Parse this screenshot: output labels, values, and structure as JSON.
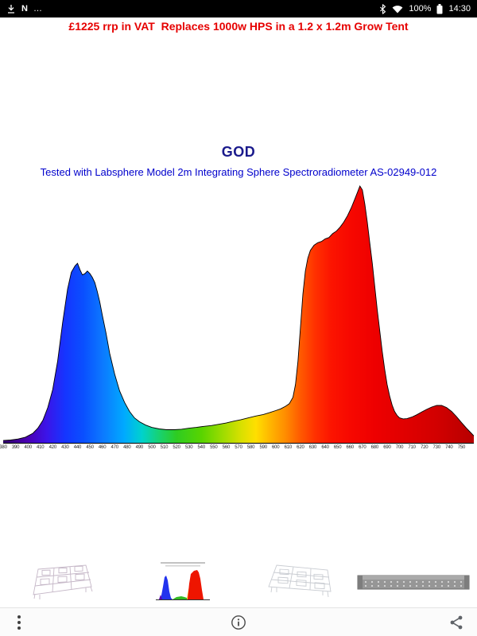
{
  "status_bar": {
    "time": "14:30",
    "battery": "100%",
    "nfc_glyph": "N",
    "more_glyph": "…",
    "left_icons": [
      "download-icon",
      "nfc-icon",
      "status-more-icon"
    ],
    "right_icons": [
      "bluetooth-icon",
      "wifi-icon",
      "battery-icon"
    ]
  },
  "header": {
    "promo_text": "£1225 rrp in VAT  Replaces 1000w HPS in a 1.2 x 1.2m Grow Tent",
    "color": "#e60000"
  },
  "chart": {
    "title_color": "#1a1a8c",
    "subtitle_color": "#0000cc"
  },
  "chart_data": {
    "type": "area",
    "title": "GOD",
    "subtitle": "Tested with Labsphere Model 2m Integrating Sphere Spectroradiometer AS-02949-012",
    "x_range": [
      380,
      760
    ],
    "y_range": [
      0,
      1
    ],
    "grid": false,
    "legend": false,
    "xticks": [
      380,
      390,
      400,
      410,
      420,
      430,
      440,
      450,
      460,
      470,
      480,
      490,
      500,
      510,
      520,
      530,
      540,
      550,
      560,
      570,
      580,
      590,
      600,
      610,
      620,
      630,
      640,
      650,
      660,
      670,
      680,
      690,
      700,
      710,
      720,
      730,
      740,
      750
    ],
    "points": [
      [
        380,
        0.012
      ],
      [
        386,
        0.014
      ],
      [
        392,
        0.018
      ],
      [
        398,
        0.025
      ],
      [
        404,
        0.04
      ],
      [
        408,
        0.06
      ],
      [
        412,
        0.09
      ],
      [
        416,
        0.14
      ],
      [
        420,
        0.21
      ],
      [
        424,
        0.32
      ],
      [
        428,
        0.47
      ],
      [
        432,
        0.6
      ],
      [
        435,
        0.665
      ],
      [
        438,
        0.69
      ],
      [
        440,
        0.7
      ],
      [
        442,
        0.675
      ],
      [
        444,
        0.655
      ],
      [
        446,
        0.66
      ],
      [
        448,
        0.67
      ],
      [
        450,
        0.66
      ],
      [
        452,
        0.645
      ],
      [
        454,
        0.625
      ],
      [
        456,
        0.59
      ],
      [
        458,
        0.55
      ],
      [
        460,
        0.5
      ],
      [
        463,
        0.43
      ],
      [
        466,
        0.35
      ],
      [
        470,
        0.27
      ],
      [
        474,
        0.205
      ],
      [
        478,
        0.16
      ],
      [
        482,
        0.125
      ],
      [
        486,
        0.1
      ],
      [
        490,
        0.085
      ],
      [
        495,
        0.072
      ],
      [
        500,
        0.063
      ],
      [
        506,
        0.057
      ],
      [
        512,
        0.054
      ],
      [
        518,
        0.054
      ],
      [
        524,
        0.056
      ],
      [
        530,
        0.06
      ],
      [
        536,
        0.063
      ],
      [
        542,
        0.067
      ],
      [
        548,
        0.07
      ],
      [
        554,
        0.075
      ],
      [
        560,
        0.08
      ],
      [
        566,
        0.087
      ],
      [
        572,
        0.093
      ],
      [
        578,
        0.1
      ],
      [
        584,
        0.107
      ],
      [
        590,
        0.113
      ],
      [
        595,
        0.12
      ],
      [
        600,
        0.128
      ],
      [
        604,
        0.135
      ],
      [
        608,
        0.145
      ],
      [
        611,
        0.155
      ],
      [
        614,
        0.18
      ],
      [
        616,
        0.23
      ],
      [
        618,
        0.32
      ],
      [
        620,
        0.45
      ],
      [
        622,
        0.58
      ],
      [
        624,
        0.67
      ],
      [
        626,
        0.72
      ],
      [
        628,
        0.75
      ],
      [
        631,
        0.77
      ],
      [
        634,
        0.78
      ],
      [
        637,
        0.785
      ],
      [
        640,
        0.795
      ],
      [
        643,
        0.8
      ],
      [
        646,
        0.815
      ],
      [
        649,
        0.825
      ],
      [
        652,
        0.84
      ],
      [
        655,
        0.86
      ],
      [
        658,
        0.885
      ],
      [
        661,
        0.915
      ],
      [
        664,
        0.95
      ],
      [
        666,
        0.975
      ],
      [
        668,
        1.0
      ],
      [
        670,
        0.985
      ],
      [
        672,
        0.93
      ],
      [
        674,
        0.86
      ],
      [
        676,
        0.78
      ],
      [
        678,
        0.7
      ],
      [
        680,
        0.61
      ],
      [
        682,
        0.52
      ],
      [
        684,
        0.44
      ],
      [
        686,
        0.36
      ],
      [
        688,
        0.29
      ],
      [
        690,
        0.23
      ],
      [
        692,
        0.185
      ],
      [
        694,
        0.15
      ],
      [
        696,
        0.125
      ],
      [
        698,
        0.11
      ],
      [
        700,
        0.1
      ],
      [
        703,
        0.096
      ],
      [
        706,
        0.097
      ],
      [
        710,
        0.103
      ],
      [
        714,
        0.112
      ],
      [
        718,
        0.123
      ],
      [
        722,
        0.133
      ],
      [
        726,
        0.142
      ],
      [
        730,
        0.148
      ],
      [
        734,
        0.148
      ],
      [
        738,
        0.14
      ],
      [
        742,
        0.125
      ],
      [
        746,
        0.105
      ],
      [
        750,
        0.082
      ],
      [
        754,
        0.06
      ],
      [
        758,
        0.04
      ],
      [
        760,
        0.03
      ]
    ],
    "spectrum_gradient": [
      {
        "wl": 380,
        "color": "#33006e"
      },
      {
        "wl": 400,
        "color": "#4a00b4"
      },
      {
        "wl": 415,
        "color": "#3c14e8"
      },
      {
        "wl": 430,
        "color": "#1535ff"
      },
      {
        "wl": 445,
        "color": "#0a50ff"
      },
      {
        "wl": 460,
        "color": "#0c78ff"
      },
      {
        "wl": 478,
        "color": "#00aaff"
      },
      {
        "wl": 492,
        "color": "#00d2cd"
      },
      {
        "wl": 505,
        "color": "#16d277"
      },
      {
        "wl": 520,
        "color": "#2ecc22"
      },
      {
        "wl": 540,
        "color": "#58d400"
      },
      {
        "wl": 558,
        "color": "#a0dc00"
      },
      {
        "wl": 572,
        "color": "#d8e000"
      },
      {
        "wl": 584,
        "color": "#ffdf00"
      },
      {
        "wl": 596,
        "color": "#ffb400"
      },
      {
        "wl": 608,
        "color": "#ff8c00"
      },
      {
        "wl": 620,
        "color": "#ff5a00"
      },
      {
        "wl": 632,
        "color": "#ff3000"
      },
      {
        "wl": 645,
        "color": "#fc1400"
      },
      {
        "wl": 660,
        "color": "#f70800"
      },
      {
        "wl": 680,
        "color": "#ee0000"
      },
      {
        "wl": 705,
        "color": "#e00000"
      },
      {
        "wl": 730,
        "color": "#d20000"
      },
      {
        "wl": 760,
        "color": "#b70000"
      }
    ]
  },
  "thumbnails": [
    {
      "name": "led-panel-wireframe-thumbnail"
    },
    {
      "name": "spectrum-chart-thumbnail"
    },
    {
      "name": "led-panel-wireframe-2-thumbnail"
    },
    {
      "name": "led-bar-fixture-thumbnail"
    }
  ],
  "bottom_bar": {
    "icons": [
      "overflow-menu-icon",
      "info-icon",
      "share-icon"
    ]
  }
}
